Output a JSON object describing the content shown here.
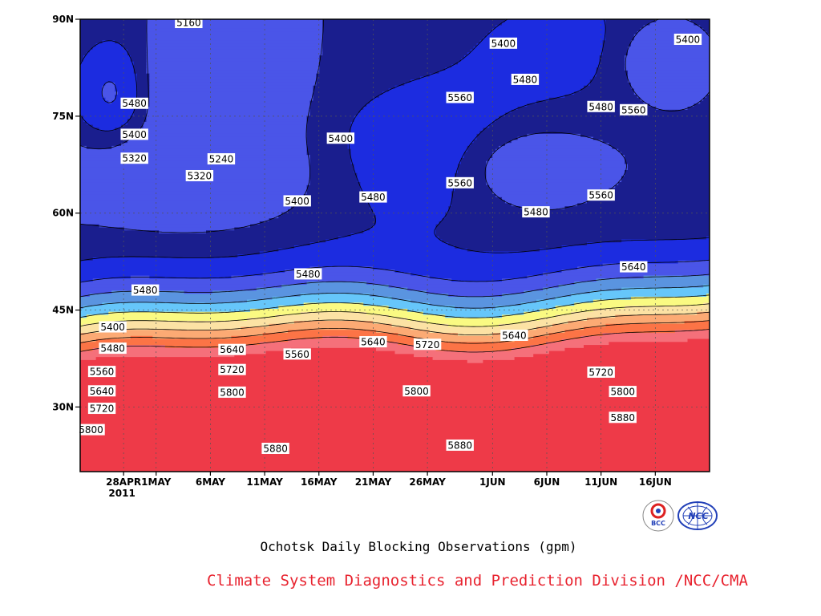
{
  "chart_data": {
    "type": "heatmap",
    "subtype": "filled-contour",
    "title": "Ochotsk Daily Blocking Observations (gpm)",
    "credit": "Climate System Diagnostics and Prediction Division /NCC/CMA",
    "logos": [
      "BCC",
      "NCC"
    ],
    "x_axis": {
      "kind": "date",
      "range": [
        "2011-04-24",
        "2011-06-21"
      ],
      "ticks": [
        {
          "date": "2011-04-28",
          "label": "28APR",
          "sublabel": "2011"
        },
        {
          "date": "2011-05-01",
          "label": "1MAY"
        },
        {
          "date": "2011-05-06",
          "label": "6MAY"
        },
        {
          "date": "2011-05-11",
          "label": "11MAY"
        },
        {
          "date": "2011-05-16",
          "label": "16MAY"
        },
        {
          "date": "2011-05-21",
          "label": "21MAY"
        },
        {
          "date": "2011-05-26",
          "label": "26MAY"
        },
        {
          "date": "2011-06-01",
          "label": "1JUN"
        },
        {
          "date": "2011-06-06",
          "label": "6JUN"
        },
        {
          "date": "2011-06-11",
          "label": "11JUN"
        },
        {
          "date": "2011-06-16",
          "label": "16JUN"
        }
      ]
    },
    "y_axis": {
      "kind": "latitude",
      "range": [
        20,
        90
      ],
      "ticks": [
        {
          "value": 30,
          "label": "30N"
        },
        {
          "value": 45,
          "label": "45N"
        },
        {
          "value": 60,
          "label": "60N"
        },
        {
          "value": 75,
          "label": "75N"
        },
        {
          "value": 90,
          "label": "90N"
        }
      ]
    },
    "grid": "dotted",
    "levels": [
      5160,
      5240,
      5320,
      5400,
      5480,
      5560,
      5640,
      5720,
      5800,
      5880
    ],
    "fill_colors": {
      "below_5160": "#4a55e8",
      "5160_5240": "#1a1e8e",
      "5240_5320": "#1c2ce0",
      "5320_5400": "#4a55e8",
      "5400_5480": "#5a94e0",
      "5480_5560": "#66c6fa",
      "5560_5640": "#fafa82",
      "5640_5720": "#fce2a4",
      "5720_5800": "#fcaa74",
      "5800_5880": "#fc7446",
      "5880_5960": "#f5707a",
      "above_5960": "#ee3a48"
    },
    "contour_labels": [
      {
        "text": "5160",
        "date": "2011-05-04",
        "lat": 89.5
      },
      {
        "text": "5480",
        "date": "2011-04-29",
        "lat": 77
      },
      {
        "text": "5400",
        "date": "2011-04-29",
        "lat": 72.2
      },
      {
        "text": "5320",
        "date": "2011-04-29",
        "lat": 68.5
      },
      {
        "text": "5240",
        "date": "2011-05-07",
        "lat": 68.4
      },
      {
        "text": "5320",
        "date": "2011-05-05",
        "lat": 65.8
      },
      {
        "text": "5400",
        "date": "2011-05-14",
        "lat": 61.9
      },
      {
        "text": "5400",
        "date": "2011-05-18",
        "lat": 71.6
      },
      {
        "text": "5480",
        "date": "2011-05-21",
        "lat": 62.5
      },
      {
        "text": "5480",
        "date": "2011-04-30",
        "lat": 48.1
      },
      {
        "text": "5480",
        "date": "2011-05-15",
        "lat": 50.6
      },
      {
        "text": "5400",
        "date": "2011-04-27",
        "lat": 42.4
      },
      {
        "text": "5480",
        "date": "2011-04-27",
        "lat": 39.1
      },
      {
        "text": "5560",
        "date": "2011-04-26",
        "lat": 35.5
      },
      {
        "text": "5640",
        "date": "2011-04-26",
        "lat": 32.5
      },
      {
        "text": "5720",
        "date": "2011-04-26",
        "lat": 29.8
      },
      {
        "text": "5800",
        "date": "2011-04-25",
        "lat": 26.5
      },
      {
        "text": "5640",
        "date": "2011-05-08",
        "lat": 38.9
      },
      {
        "text": "5720",
        "date": "2011-05-08",
        "lat": 35.8
      },
      {
        "text": "5800",
        "date": "2011-05-08",
        "lat": 32.3
      },
      {
        "text": "5880",
        "date": "2011-05-12",
        "lat": 23.6
      },
      {
        "text": "5560",
        "date": "2011-05-14",
        "lat": 38.2
      },
      {
        "text": "5640",
        "date": "2011-05-21",
        "lat": 40.1
      },
      {
        "text": "5720",
        "date": "2011-05-26",
        "lat": 39.7
      },
      {
        "text": "5800",
        "date": "2011-05-25",
        "lat": 32.5
      },
      {
        "text": "5880",
        "date": "2011-05-29",
        "lat": 24.1
      },
      {
        "text": "5400",
        "date": "2011-06-02",
        "lat": 86.3
      },
      {
        "text": "5480",
        "date": "2011-06-04",
        "lat": 80.7
      },
      {
        "text": "5560",
        "date": "2011-05-29",
        "lat": 77.9
      },
      {
        "text": "5560",
        "date": "2011-05-29",
        "lat": 64.7
      },
      {
        "text": "5480",
        "date": "2011-06-05",
        "lat": 60.2
      },
      {
        "text": "5640",
        "date": "2011-06-03",
        "lat": 41.1
      },
      {
        "text": "5480",
        "date": "2011-06-11",
        "lat": 76.5
      },
      {
        "text": "5560",
        "date": "2011-06-14",
        "lat": 76.0
      },
      {
        "text": "5560",
        "date": "2011-06-11",
        "lat": 62.8
      },
      {
        "text": "5640",
        "date": "2011-06-14",
        "lat": 51.7
      },
      {
        "text": "5720",
        "date": "2011-06-11",
        "lat": 35.4
      },
      {
        "text": "5800",
        "date": "2011-06-13",
        "lat": 32.4
      },
      {
        "text": "5880",
        "date": "2011-06-13",
        "lat": 28.4
      },
      {
        "text": "5400",
        "date": "2011-06-19",
        "lat": 86.9
      }
    ]
  }
}
